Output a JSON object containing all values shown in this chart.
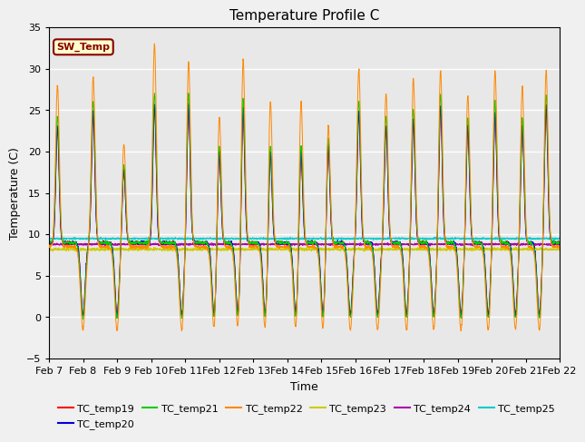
{
  "title": "Temperature Profile C",
  "xlabel": "Time",
  "ylabel": "Temperature (C)",
  "ylim": [
    -5,
    35
  ],
  "x_tick_labels": [
    "Feb 7",
    "Feb 8",
    "Feb 9",
    "Feb 10",
    "Feb 11",
    "Feb 12",
    "Feb 13",
    "Feb 14",
    "Feb 15",
    "Feb 16",
    "Feb 17",
    "Feb 18",
    "Feb 19",
    "Feb 20",
    "Feb 21",
    "Feb 22"
  ],
  "series_colors": {
    "TC_temp19": "#ff0000",
    "TC_temp20": "#0000dd",
    "TC_temp21": "#00cc00",
    "TC_temp22": "#ff8800",
    "TC_temp23": "#cccc00",
    "TC_temp24": "#aa00aa",
    "TC_temp25": "#00cccc"
  },
  "flat_base": {
    "TC_temp23": 8.2,
    "TC_temp24": 8.8,
    "TC_temp25": 9.5
  },
  "annotation_text": "SW_Temp",
  "annotation_bg": "#ffffcc",
  "annotation_fg": "#880000",
  "ax_bg_color": "#e8e8e8",
  "fig_bg_color": "#f0f0f0",
  "grid_color": "#ffffff",
  "spike_days": [
    0.25,
    1.3,
    2.2,
    3.1,
    4.1,
    5.0,
    5.7,
    6.5,
    7.4,
    8.2,
    9.1,
    9.9,
    10.7,
    11.5,
    12.3,
    13.1,
    13.9,
    14.6
  ],
  "dip_days": [
    1.0,
    2.0,
    3.9,
    4.85,
    5.55,
    6.35,
    7.25,
    8.05,
    8.85,
    9.65,
    10.5,
    11.3,
    12.1,
    12.9,
    13.7,
    14.4
  ],
  "spike_heights_22": [
    28,
    29,
    21,
    33,
    31,
    25,
    32,
    27,
    27,
    24,
    30,
    27,
    29,
    30,
    27,
    30,
    28,
    30
  ],
  "spike_heights_others": [
    25,
    27,
    19,
    28,
    28,
    22,
    28,
    22,
    22,
    23,
    27,
    25,
    26,
    28,
    25,
    27,
    25,
    28
  ],
  "dip_depth": 10
}
